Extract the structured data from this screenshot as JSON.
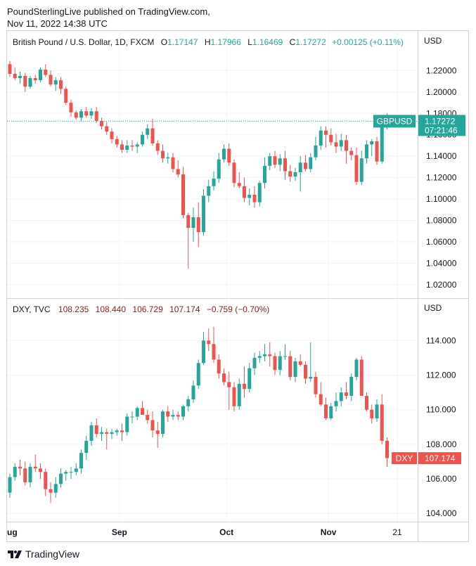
{
  "header": {
    "line1": "PoundSterlingLive published on TradingView.com,",
    "line2": "Nov 11, 2022 14:38 UTC"
  },
  "footer": {
    "brand": "TradingView"
  },
  "colors": {
    "up": "#26a69a",
    "down": "#ef5350",
    "grid": "#f0f3fa",
    "border": "#d1d4dc",
    "text": "#131722"
  },
  "chart_data": [
    {
      "type": "candlestick",
      "title": "British Pound / U.S. Dollar, 1D, FXCM",
      "ohlc_labels": {
        "o": "O",
        "h": "H",
        "l": "L",
        "c": "C",
        "o_val": "1.17147",
        "h_val": "1.17966",
        "l_val": "1.16469",
        "c_val": "1.17272",
        "change": "+0.00125 (+0.11%)"
      },
      "currency": "USD",
      "ylim": [
        1.01,
        1.24
      ],
      "yticks": [
        "1.22000",
        "1.20000",
        "1.18000",
        "1.16000",
        "1.14000",
        "1.12000",
        "1.10000",
        "1.08000",
        "1.06000",
        "1.04000",
        "1.02000"
      ],
      "last_price_label": {
        "symbol": "GBPUSD",
        "price": "1.17272",
        "countdown": "07:21:46"
      },
      "last_price": 1.17272,
      "ohlc": [
        [
          1.226,
          1.229,
          1.214,
          1.217
        ],
        [
          1.217,
          1.223,
          1.211,
          1.213
        ],
        [
          1.213,
          1.219,
          1.208,
          1.215
        ],
        [
          1.215,
          1.218,
          1.2,
          1.205
        ],
        [
          1.205,
          1.215,
          1.203,
          1.213
        ],
        [
          1.213,
          1.216,
          1.208,
          1.211
        ],
        [
          1.211,
          1.223,
          1.209,
          1.221
        ],
        [
          1.221,
          1.226,
          1.214,
          1.216
        ],
        [
          1.216,
          1.22,
          1.205,
          1.207
        ],
        [
          1.207,
          1.214,
          1.201,
          1.211
        ],
        [
          1.211,
          1.214,
          1.198,
          1.203
        ],
        [
          1.203,
          1.205,
          1.188,
          1.19
        ],
        [
          1.19,
          1.193,
          1.177,
          1.181
        ],
        [
          1.181,
          1.183,
          1.174,
          1.176
        ],
        [
          1.176,
          1.184,
          1.173,
          1.182
        ],
        [
          1.182,
          1.186,
          1.176,
          1.178
        ],
        [
          1.178,
          1.185,
          1.175,
          1.182
        ],
        [
          1.182,
          1.186,
          1.171,
          1.173
        ],
        [
          1.173,
          1.176,
          1.165,
          1.168
        ],
        [
          1.168,
          1.172,
          1.16,
          1.163
        ],
        [
          1.163,
          1.166,
          1.152,
          1.156
        ],
        [
          1.156,
          1.159,
          1.148,
          1.151
        ],
        [
          1.151,
          1.155,
          1.143,
          1.146
        ],
        [
          1.146,
          1.155,
          1.143,
          1.15
        ],
        [
          1.15,
          1.155,
          1.145,
          1.149
        ],
        [
          1.149,
          1.153,
          1.143,
          1.151
        ],
        [
          1.151,
          1.163,
          1.149,
          1.16
        ],
        [
          1.16,
          1.17,
          1.156,
          1.166
        ],
        [
          1.166,
          1.175,
          1.15,
          1.152
        ],
        [
          1.152,
          1.155,
          1.141,
          1.145
        ],
        [
          1.145,
          1.151,
          1.134,
          1.138
        ],
        [
          1.138,
          1.143,
          1.133,
          1.139
        ],
        [
          1.139,
          1.143,
          1.125,
          1.128
        ],
        [
          1.128,
          1.136,
          1.12,
          1.123
        ],
        [
          1.123,
          1.13,
          1.082,
          1.085
        ],
        [
          1.085,
          1.087,
          1.035,
          1.073
        ],
        [
          1.073,
          1.092,
          1.06,
          1.083
        ],
        [
          1.083,
          1.097,
          1.055,
          1.069
        ],
        [
          1.069,
          1.109,
          1.066,
          1.103
        ],
        [
          1.103,
          1.118,
          1.097,
          1.112
        ],
        [
          1.112,
          1.126,
          1.108,
          1.119
        ],
        [
          1.119,
          1.143,
          1.115,
          1.137
        ],
        [
          1.137,
          1.151,
          1.134,
          1.147
        ],
        [
          1.147,
          1.152,
          1.131,
          1.134
        ],
        [
          1.134,
          1.137,
          1.111,
          1.115
        ],
        [
          1.115,
          1.125,
          1.11,
          1.112
        ],
        [
          1.112,
          1.12,
          1.097,
          1.101
        ],
        [
          1.101,
          1.11,
          1.094,
          1.104
        ],
        [
          1.104,
          1.112,
          1.092,
          1.097
        ],
        [
          1.097,
          1.117,
          1.093,
          1.115
        ],
        [
          1.115,
          1.139,
          1.11,
          1.131
        ],
        [
          1.131,
          1.143,
          1.127,
          1.14
        ],
        [
          1.14,
          1.145,
          1.129,
          1.132
        ],
        [
          1.132,
          1.142,
          1.126,
          1.138
        ],
        [
          1.138,
          1.145,
          1.118,
          1.126
        ],
        [
          1.126,
          1.132,
          1.116,
          1.121
        ],
        [
          1.121,
          1.129,
          1.117,
          1.125
        ],
        [
          1.125,
          1.14,
          1.107,
          1.134
        ],
        [
          1.134,
          1.141,
          1.126,
          1.128
        ],
        [
          1.128,
          1.143,
          1.125,
          1.139
        ],
        [
          1.139,
          1.158,
          1.136,
          1.15
        ],
        [
          1.15,
          1.168,
          1.146,
          1.164
        ],
        [
          1.164,
          1.168,
          1.148,
          1.16
        ],
        [
          1.16,
          1.166,
          1.15,
          1.153
        ],
        [
          1.153,
          1.161,
          1.143,
          1.149
        ],
        [
          1.149,
          1.161,
          1.145,
          1.155
        ],
        [
          1.155,
          1.16,
          1.133,
          1.145
        ],
        [
          1.145,
          1.148,
          1.136,
          1.141
        ],
        [
          1.141,
          1.148,
          1.113,
          1.116
        ],
        [
          1.116,
          1.145,
          1.113,
          1.138
        ],
        [
          1.138,
          1.155,
          1.133,
          1.151
        ],
        [
          1.151,
          1.156,
          1.14,
          1.154
        ],
        [
          1.154,
          1.158,
          1.132,
          1.135
        ],
        [
          1.135,
          1.177,
          1.133,
          1.172
        ],
        [
          1.171,
          1.18,
          1.165,
          1.173
        ]
      ]
    },
    {
      "type": "candlestick",
      "title": "DXY, TVC",
      "ohlc_values": [
        "108.235",
        "108.440",
        "106.729",
        "107.174",
        "−0.759 (−0.70%)"
      ],
      "currency": "USD",
      "ylim": [
        103.6,
        115.4
      ],
      "yticks": [
        "114.000",
        "112.000",
        "110.000",
        "108.000",
        "106.000",
        "104.000"
      ],
      "last_price_label": {
        "symbol": "DXY",
        "price": "107.174"
      },
      "last_price": 107.174,
      "x_tick_labels": [
        "ug",
        "Sep",
        "Oct",
        "Nov",
        "21"
      ],
      "ohlc": [
        [
          105.2,
          106.3,
          104.9,
          106.1
        ],
        [
          106.1,
          106.9,
          105.9,
          106.7
        ],
        [
          106.7,
          107.1,
          106.2,
          106.6
        ],
        [
          106.6,
          107.0,
          105.6,
          105.8
        ],
        [
          105.8,
          106.9,
          105.5,
          106.7
        ],
        [
          106.7,
          107.4,
          106.4,
          106.6
        ],
        [
          106.6,
          106.9,
          106.0,
          106.4
        ],
        [
          106.4,
          106.6,
          105.0,
          105.4
        ],
        [
          105.4,
          105.8,
          104.6,
          105.2
        ],
        [
          105.2,
          106.1,
          104.9,
          105.7
        ],
        [
          105.7,
          106.6,
          105.5,
          106.3
        ],
        [
          106.3,
          106.5,
          105.9,
          106.4
        ],
        [
          106.4,
          106.7,
          106.0,
          106.4
        ],
        [
          106.4,
          106.9,
          106.2,
          106.6
        ],
        [
          106.6,
          107.7,
          106.3,
          107.5
        ],
        [
          107.5,
          108.5,
          107.1,
          108.2
        ],
        [
          108.2,
          109.3,
          107.9,
          109.1
        ],
        [
          109.1,
          109.5,
          108.4,
          108.6
        ],
        [
          108.6,
          109.0,
          108.2,
          108.7
        ],
        [
          108.7,
          108.9,
          107.7,
          108.6
        ],
        [
          108.6,
          108.9,
          108.3,
          108.7
        ],
        [
          108.7,
          108.9,
          108.5,
          108.8
        ],
        [
          108.8,
          109.2,
          108.2,
          108.7
        ],
        [
          108.7,
          109.8,
          108.5,
          109.6
        ],
        [
          109.6,
          109.9,
          109.2,
          109.6
        ],
        [
          109.6,
          110.2,
          109.4,
          110.1
        ],
        [
          110.1,
          110.5,
          109.7,
          109.7
        ],
        [
          109.7,
          110.0,
          109.2,
          109.4
        ],
        [
          109.4,
          109.9,
          108.4,
          108.8
        ],
        [
          108.8,
          109.3,
          107.8,
          108.6
        ],
        [
          108.6,
          110.0,
          108.4,
          109.9
        ],
        [
          109.9,
          110.2,
          109.3,
          109.6
        ],
        [
          109.6,
          110.0,
          109.4,
          109.7
        ],
        [
          109.7,
          109.9,
          109.4,
          109.6
        ],
        [
          109.6,
          110.3,
          109.4,
          110.2
        ],
        [
          110.2,
          110.8,
          109.9,
          110.6
        ],
        [
          110.6,
          111.7,
          110.4,
          111.4
        ],
        [
          111.4,
          112.9,
          111.2,
          112.7
        ],
        [
          112.7,
          114.5,
          112.6,
          114.0
        ],
        [
          114.0,
          114.7,
          113.4,
          113.8
        ],
        [
          113.8,
          114.8,
          112.7,
          112.9
        ],
        [
          112.9,
          113.2,
          111.8,
          112.1
        ],
        [
          112.1,
          112.4,
          111.4,
          111.6
        ],
        [
          111.6,
          112.2,
          110.0,
          111.3
        ],
        [
          111.3,
          111.6,
          109.9,
          110.2
        ],
        [
          110.2,
          111.8,
          110.0,
          111.5
        ],
        [
          111.5,
          112.5,
          110.7,
          111.2
        ],
        [
          111.2,
          112.7,
          111.0,
          112.4
        ],
        [
          112.4,
          113.3,
          112.0,
          113.0
        ],
        [
          113.0,
          113.4,
          112.7,
          113.1
        ],
        [
          113.1,
          113.8,
          112.8,
          113.2
        ],
        [
          113.2,
          113.9,
          112.5,
          113.1
        ],
        [
          113.1,
          113.3,
          112.0,
          112.3
        ],
        [
          112.3,
          113.4,
          112.0,
          113.1
        ],
        [
          113.1,
          113.8,
          112.9,
          113.1
        ],
        [
          113.1,
          113.4,
          111.7,
          111.9
        ],
        [
          111.9,
          113.0,
          111.6,
          112.8
        ],
        [
          112.8,
          113.2,
          112.5,
          112.6
        ],
        [
          112.6,
          112.8,
          111.5,
          111.8
        ],
        [
          111.8,
          113.9,
          111.6,
          111.9
        ],
        [
          111.9,
          112.2,
          110.7,
          110.9
        ],
        [
          110.9,
          111.6,
          110.2,
          110.3
        ],
        [
          110.3,
          110.7,
          109.4,
          109.5
        ],
        [
          109.5,
          110.4,
          109.4,
          110.2
        ],
        [
          110.2,
          111.0,
          109.9,
          110.5
        ],
        [
          110.5,
          111.3,
          110.2,
          111.0
        ],
        [
          111.0,
          111.6,
          110.6,
          110.8
        ],
        [
          110.8,
          112.1,
          110.5,
          111.9
        ],
        [
          111.9,
          113.0,
          111.7,
          112.9
        ],
        [
          112.9,
          113.1,
          110.9,
          110.8
        ],
        [
          110.8,
          111.0,
          109.9,
          110.0
        ],
        [
          110.0,
          110.3,
          109.2,
          109.5
        ],
        [
          109.5,
          110.6,
          109.3,
          110.3
        ],
        [
          110.3,
          110.9,
          108.0,
          108.2
        ],
        [
          108.2,
          108.4,
          106.7,
          107.2
        ]
      ]
    }
  ]
}
